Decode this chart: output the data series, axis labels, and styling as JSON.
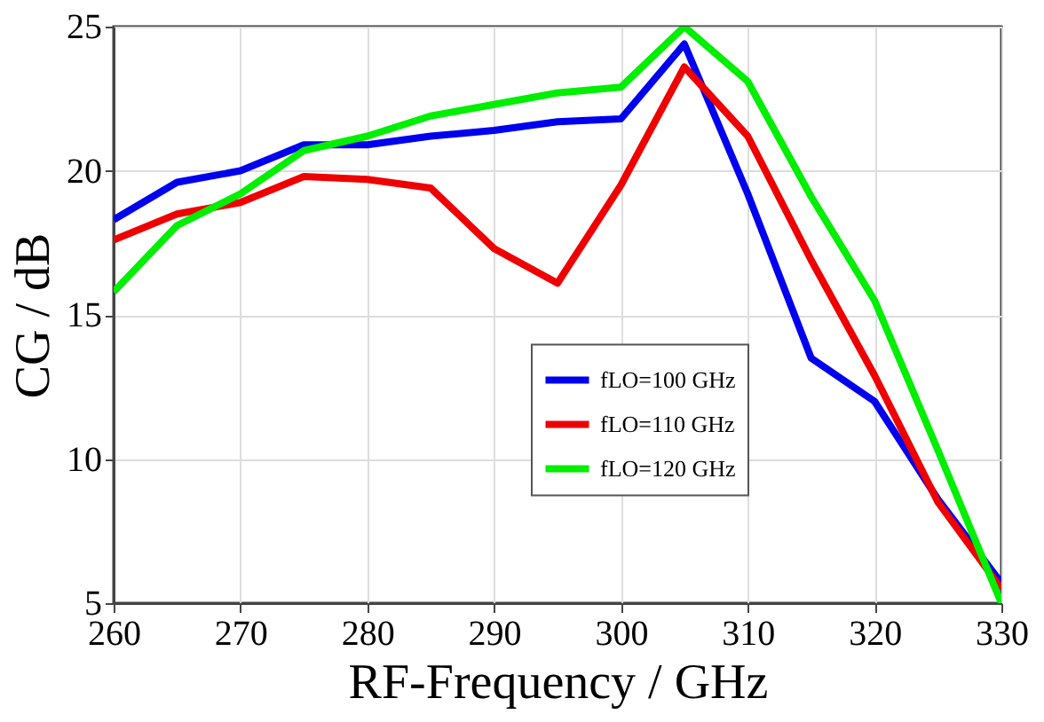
{
  "chart_data": {
    "type": "line",
    "xlabel": "RF-Frequency / GHz",
    "ylabel": "CG / dB",
    "x": [
      260,
      265,
      270,
      275,
      280,
      285,
      290,
      295,
      300,
      305,
      310,
      315,
      320,
      325,
      330
    ],
    "series": [
      {
        "name": "fLO=100 GHz",
        "color": "#0000ee",
        "values": [
          18.3,
          19.6,
          20.0,
          20.9,
          20.9,
          21.2,
          21.4,
          21.7,
          21.8,
          24.4,
          19.2,
          13.5,
          12.0,
          8.6,
          5.7
        ]
      },
      {
        "name": "fLO=110 GHz",
        "color": "#ee0000",
        "values": [
          17.6,
          18.5,
          18.9,
          19.8,
          19.7,
          19.4,
          17.3,
          16.1,
          19.5,
          23.6,
          21.2,
          16.9,
          12.9,
          8.5,
          5.5
        ]
      },
      {
        "name": "fLO=120 GHz",
        "color": "#00ee00",
        "values": [
          15.8,
          18.1,
          19.2,
          20.7,
          21.2,
          21.9,
          22.3,
          22.7,
          22.9,
          25.0,
          23.1,
          19.1,
          15.5,
          10.3,
          5.0
        ]
      }
    ],
    "xlim": [
      260,
      330
    ],
    "xticks": [
      260,
      270,
      280,
      290,
      300,
      310,
      320,
      330
    ],
    "ylim": [
      5,
      25
    ],
    "yticks": [
      5,
      10,
      15,
      20,
      25
    ],
    "grid": true,
    "legend": "center",
    "line_style": "solid",
    "marker": "none"
  }
}
